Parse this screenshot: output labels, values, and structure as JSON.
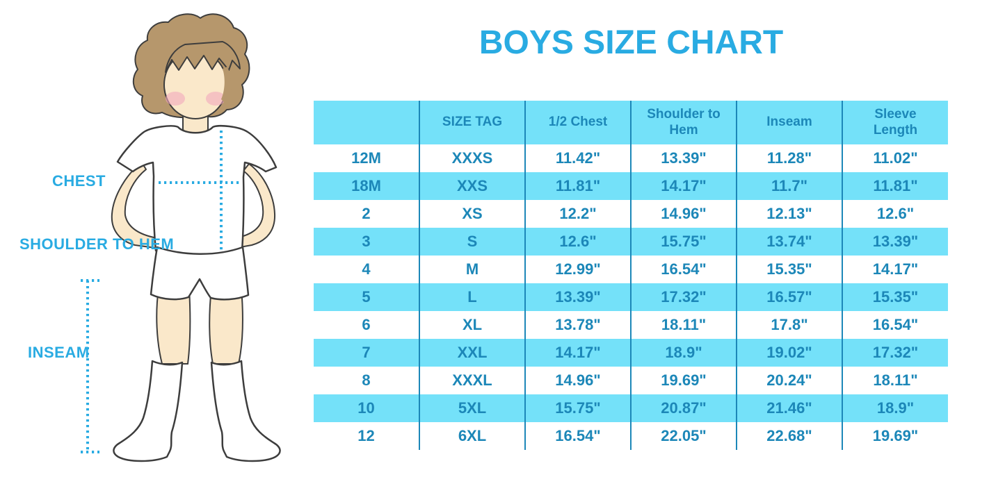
{
  "title": "BOYS SIZE CHART",
  "colors": {
    "accent_blue": "#29ABE2",
    "table_text_blue": "#1C87B8",
    "row_fill_cyan": "#74E1F9",
    "divider_blue": "#1C87B8",
    "skin": "#FAE8CA",
    "hair_brown": "#B6976C",
    "cheek_pink": "#F2A9BC"
  },
  "figure": {
    "labels": {
      "chest": "CHEST",
      "shoulder_to_hem": "SHOULDER TO HEM",
      "inseam": "INSEAM"
    }
  },
  "chart_data": {
    "type": "table",
    "title": "BOYS SIZE CHART",
    "columns": [
      "",
      "SIZE TAG",
      "1/2 Chest",
      "Shoulder to Hem",
      "Inseam",
      "Sleeve Length"
    ],
    "rows": [
      [
        "12M",
        "XXXS",
        "11.42\"",
        "13.39\"",
        "11.28\"",
        "11.02\""
      ],
      [
        "18M",
        "XXS",
        "11.81\"",
        "14.17\"",
        "11.7\"",
        "11.81\""
      ],
      [
        "2",
        "XS",
        "12.2\"",
        "14.96\"",
        "12.13\"",
        "12.6\""
      ],
      [
        "3",
        "S",
        "12.6\"",
        "15.75\"",
        "13.74\"",
        "13.39\""
      ],
      [
        "4",
        "M",
        "12.99\"",
        "16.54\"",
        "15.35\"",
        "14.17\""
      ],
      [
        "5",
        "L",
        "13.39\"",
        "17.32\"",
        "16.57\"",
        "15.35\""
      ],
      [
        "6",
        "XL",
        "13.78\"",
        "18.11\"",
        "17.8\"",
        "16.54\""
      ],
      [
        "7",
        "XXL",
        "14.17\"",
        "18.9\"",
        "19.02\"",
        "17.32\""
      ],
      [
        "8",
        "XXXL",
        "14.96\"",
        "19.69\"",
        "20.24\"",
        "18.11\""
      ],
      [
        "10",
        "5XL",
        "15.75\"",
        "20.87\"",
        "21.46\"",
        "18.9\""
      ],
      [
        "12",
        "6XL",
        "16.54\"",
        "22.05\"",
        "22.68\"",
        "19.69\""
      ]
    ],
    "striping": "header and alternate rows filled light cyan, others white",
    "grid": "vertical column dividers only"
  }
}
